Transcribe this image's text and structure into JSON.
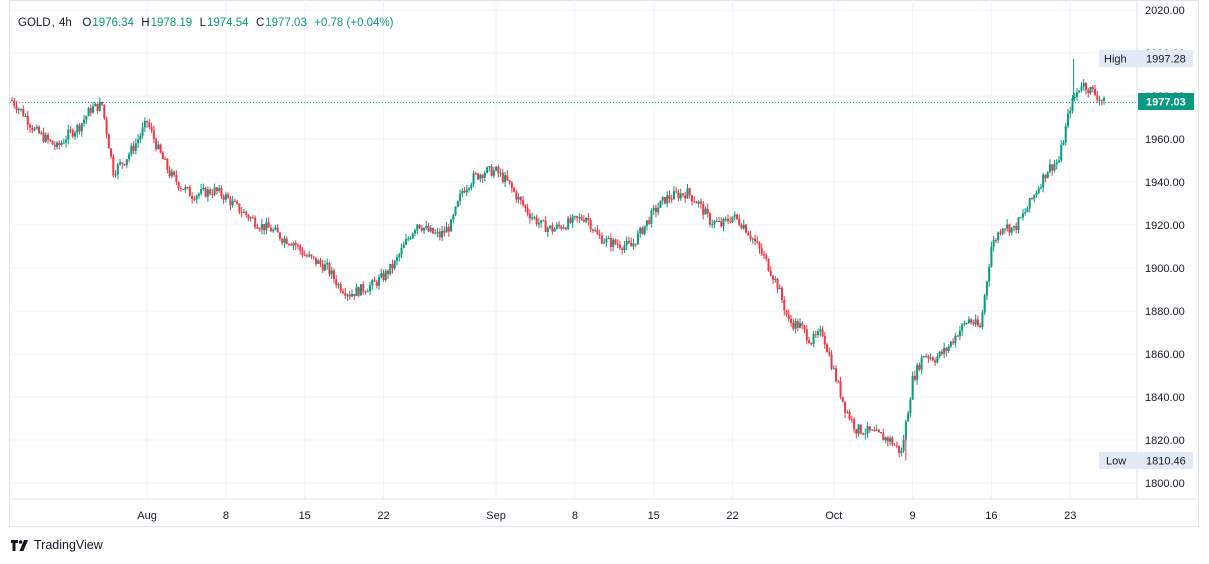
{
  "legend": {
    "symbol": "GOLD",
    "timeframe": "4h",
    "open_label": "O",
    "open": "1976.34",
    "high_label": "H",
    "high": "1978.19",
    "low_label": "L",
    "low": "1974.54",
    "close_label": "C",
    "close": "1977.03",
    "change": "+0.78 (+0.04%)"
  },
  "price_tags": {
    "high_label": "High",
    "high_value": "1997.28",
    "low_label": "Low",
    "low_value": "1810.46",
    "last_value": "1977.03"
  },
  "branding": {
    "name": "TradingView",
    "icon": "tradingview-logo-icon"
  },
  "colors": {
    "up": "#089981",
    "down": "#f23645",
    "last_tag": "#089981",
    "grid": "#f0f3fa",
    "tag_bg": "#e3eaf7"
  },
  "chart_data": {
    "type": "candlestick",
    "ylim": [
      1800,
      2020
    ],
    "y_ticks": [
      "1800.00",
      "1820.00",
      "1840.00",
      "1860.00",
      "1880.00",
      "1900.00",
      "1920.00",
      "1940.00",
      "1960.00",
      "1980.00",
      "2000.00",
      "2020.00"
    ],
    "x_ticks": [
      {
        "label": "Aug",
        "day": 32
      },
      {
        "label": "8",
        "day": 39
      },
      {
        "label": "15",
        "day": 46
      },
      {
        "label": "22",
        "day": 53
      },
      {
        "label": "Sep",
        "day": 63
      },
      {
        "label": "8",
        "day": 70
      },
      {
        "label": "15",
        "day": 77
      },
      {
        "label": "22",
        "day": 84
      },
      {
        "label": "Oct",
        "day": 93
      },
      {
        "label": "9",
        "day": 100
      },
      {
        "label": "16",
        "day": 107
      },
      {
        "label": "23",
        "day": 114
      }
    ],
    "last_price": 1977.03,
    "high": 1997.28,
    "low": 1810.46,
    "close_path": [
      [
        20,
        1978
      ],
      [
        21,
        1972
      ],
      [
        22,
        1964
      ],
      [
        23,
        1960
      ],
      [
        24,
        1956
      ],
      [
        25,
        1962
      ],
      [
        26,
        1966
      ],
      [
        27,
        1974
      ],
      [
        28,
        1976
      ],
      [
        29,
        1945
      ],
      [
        30,
        1950
      ],
      [
        31,
        1958
      ],
      [
        32,
        1968
      ],
      [
        33,
        1955
      ],
      [
        34,
        1944
      ],
      [
        35,
        1938
      ],
      [
        36,
        1934
      ],
      [
        37,
        1935
      ],
      [
        38,
        1936
      ],
      [
        39,
        1933
      ],
      [
        40,
        1928
      ],
      [
        41,
        1924
      ],
      [
        42,
        1920
      ],
      [
        43,
        1918
      ],
      [
        44,
        1914
      ],
      [
        45,
        1912
      ],
      [
        46,
        1906
      ],
      [
        47,
        1903
      ],
      [
        48,
        1900
      ],
      [
        49,
        1892
      ],
      [
        50,
        1888
      ],
      [
        51,
        1890
      ],
      [
        52,
        1892
      ],
      [
        53,
        1896
      ],
      [
        54,
        1902
      ],
      [
        55,
        1912
      ],
      [
        56,
        1921
      ],
      [
        57,
        1917
      ],
      [
        58,
        1915
      ],
      [
        59,
        1920
      ],
      [
        60,
        1936
      ],
      [
        61,
        1942
      ],
      [
        62,
        1945
      ],
      [
        63,
        1945
      ],
      [
        64,
        1940
      ],
      [
        65,
        1932
      ],
      [
        66,
        1925
      ],
      [
        67,
        1920
      ],
      [
        68,
        1918
      ],
      [
        69,
        1920
      ],
      [
        70,
        1922
      ],
      [
        71,
        1924
      ],
      [
        72,
        1915
      ],
      [
        73,
        1912
      ],
      [
        74,
        1911
      ],
      [
        75,
        1910
      ],
      [
        76,
        1918
      ],
      [
        77,
        1926
      ],
      [
        78,
        1932
      ],
      [
        79,
        1934
      ],
      [
        80,
        1935
      ],
      [
        81,
        1930
      ],
      [
        82,
        1922
      ],
      [
        83,
        1920
      ],
      [
        84,
        1924
      ],
      [
        85,
        1920
      ],
      [
        86,
        1912
      ],
      [
        87,
        1903
      ],
      [
        88,
        1892
      ],
      [
        89,
        1875
      ],
      [
        90,
        1873
      ],
      [
        91,
        1866
      ],
      [
        92,
        1870
      ],
      [
        93,
        1852
      ],
      [
        94,
        1835
      ],
      [
        95,
        1825
      ],
      [
        96,
        1824
      ],
      [
        97,
        1822
      ],
      [
        98,
        1820
      ],
      [
        99,
        1814
      ],
      [
        100,
        1848
      ],
      [
        101,
        1860
      ],
      [
        102,
        1858
      ],
      [
        103,
        1862
      ],
      [
        104,
        1870
      ],
      [
        105,
        1876
      ],
      [
        106,
        1872
      ],
      [
        107,
        1910
      ],
      [
        108,
        1920
      ],
      [
        109,
        1918
      ],
      [
        110,
        1926
      ],
      [
        111,
        1936
      ],
      [
        112,
        1946
      ],
      [
        113,
        1950
      ],
      [
        114,
        1975
      ],
      [
        115,
        1986
      ],
      [
        116,
        1982
      ],
      [
        117,
        1977
      ]
    ]
  }
}
